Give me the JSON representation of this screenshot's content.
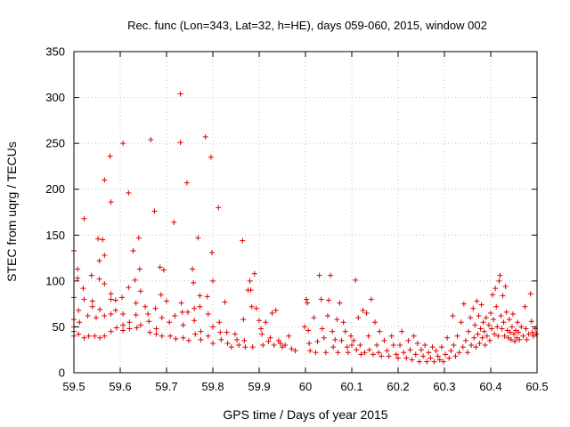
{
  "chart_data": {
    "type": "scatter",
    "title": "Rec. func (Lon=343, Lat=32, h=HE), days 059-060, 2015, window 002",
    "xlabel": "GPS time / Days of year 2015",
    "ylabel": "STEC from uqrg / TECUs",
    "xlim": [
      59.5,
      60.5
    ],
    "ylim": [
      0,
      350
    ],
    "xticks": [
      59.5,
      59.6,
      59.7,
      59.8,
      59.9,
      60.0,
      60.1,
      60.2,
      60.3,
      60.4,
      60.5
    ],
    "xtick_labels": [
      "59.5",
      "59.6",
      "59.7",
      "59.8",
      "59.9",
      "60",
      "60.1",
      "60.2",
      "60.3",
      "60.4",
      "60.5"
    ],
    "yticks": [
      0,
      50,
      100,
      150,
      200,
      250,
      300,
      350
    ],
    "ytick_labels": [
      "0",
      "50",
      "100",
      "150",
      "200",
      "250",
      "300",
      "350"
    ],
    "grid": true,
    "marker": "+",
    "color": "#dd0000",
    "series": [
      {
        "name": "STEC",
        "points": [
          [
            59.5,
            133
          ],
          [
            59.5,
            82
          ],
          [
            59.5,
            58
          ],
          [
            59.5,
            50
          ],
          [
            59.5,
            45
          ],
          [
            59.5,
            40
          ],
          [
            59.508,
            113
          ],
          [
            59.508,
            103
          ],
          [
            59.51,
            68
          ],
          [
            59.51,
            42
          ],
          [
            59.512,
            55
          ],
          [
            59.52,
            92
          ],
          [
            59.522,
            168
          ],
          [
            59.522,
            80
          ],
          [
            59.522,
            38
          ],
          [
            59.53,
            62
          ],
          [
            59.532,
            40
          ],
          [
            59.538,
            106
          ],
          [
            59.54,
            78
          ],
          [
            59.54,
            72
          ],
          [
            59.545,
            40
          ],
          [
            59.548,
            60
          ],
          [
            59.552,
            146
          ],
          [
            59.555,
            122
          ],
          [
            59.555,
            102
          ],
          [
            59.556,
            69
          ],
          [
            59.556,
            38
          ],
          [
            59.562,
            145
          ],
          [
            59.566,
            210
          ],
          [
            59.566,
            128
          ],
          [
            59.566,
            97
          ],
          [
            59.566,
            62
          ],
          [
            59.566,
            40
          ],
          [
            59.578,
            236
          ],
          [
            59.58,
            186
          ],
          [
            59.58,
            86
          ],
          [
            59.58,
            80
          ],
          [
            59.58,
            64
          ],
          [
            59.58,
            45
          ],
          [
            59.59,
            68
          ],
          [
            59.59,
            79
          ],
          [
            59.592,
            49
          ],
          [
            59.604,
            82
          ],
          [
            59.606,
            250
          ],
          [
            59.606,
            64
          ],
          [
            59.606,
            52
          ],
          [
            59.606,
            46
          ],
          [
            59.618,
            196
          ],
          [
            59.618,
            93
          ],
          [
            59.62,
            55
          ],
          [
            59.62,
            48
          ],
          [
            59.628,
            133
          ],
          [
            59.632,
            101
          ],
          [
            59.634,
            76
          ],
          [
            59.634,
            63
          ],
          [
            59.636,
            49
          ],
          [
            59.64,
            147
          ],
          [
            59.642,
            113
          ],
          [
            59.644,
            89
          ],
          [
            59.644,
            52
          ],
          [
            59.654,
            72
          ],
          [
            59.66,
            64
          ],
          [
            59.662,
            56
          ],
          [
            59.664,
            44
          ],
          [
            59.666,
            254
          ],
          [
            59.674,
            176
          ],
          [
            59.676,
            70
          ],
          [
            59.678,
            48
          ],
          [
            59.678,
            42
          ],
          [
            59.686,
            115
          ],
          [
            59.688,
            85
          ],
          [
            59.69,
            60
          ],
          [
            59.69,
            40
          ],
          [
            59.694,
            112
          ],
          [
            59.7,
            78
          ],
          [
            59.706,
            55
          ],
          [
            59.708,
            40
          ],
          [
            59.716,
            164
          ],
          [
            59.718,
            62
          ],
          [
            59.72,
            37
          ],
          [
            59.73,
            304
          ],
          [
            59.73,
            251
          ],
          [
            59.732,
            76
          ],
          [
            59.734,
            66
          ],
          [
            59.736,
            52
          ],
          [
            59.736,
            38
          ],
          [
            59.744,
            207
          ],
          [
            59.746,
            66
          ],
          [
            59.748,
            35
          ],
          [
            59.756,
            113
          ],
          [
            59.758,
            98
          ],
          [
            59.76,
            70
          ],
          [
            59.76,
            57
          ],
          [
            59.762,
            42
          ],
          [
            59.768,
            147
          ],
          [
            59.772,
            84
          ],
          [
            59.772,
            72
          ],
          [
            59.774,
            45
          ],
          [
            59.774,
            36
          ],
          [
            59.784,
            257
          ],
          [
            59.788,
            83
          ],
          [
            59.79,
            64
          ],
          [
            59.79,
            40
          ],
          [
            59.796,
            235
          ],
          [
            59.798,
            131
          ],
          [
            59.8,
            100
          ],
          [
            59.8,
            50
          ],
          [
            59.8,
            32
          ],
          [
            59.812,
            180
          ],
          [
            59.814,
            55
          ],
          [
            59.816,
            44
          ],
          [
            59.818,
            36
          ],
          [
            59.826,
            77
          ],
          [
            59.83,
            44
          ],
          [
            59.832,
            32
          ],
          [
            59.84,
            28
          ],
          [
            59.848,
            42
          ],
          [
            59.852,
            36
          ],
          [
            59.856,
            30
          ],
          [
            59.864,
            144
          ],
          [
            59.866,
            58
          ],
          [
            59.868,
            35
          ],
          [
            59.87,
            28
          ],
          [
            59.876,
            90
          ],
          [
            59.88,
            100
          ],
          [
            59.882,
            90
          ],
          [
            59.884,
            72
          ],
          [
            59.886,
            28
          ],
          [
            59.89,
            108
          ],
          [
            59.894,
            70
          ],
          [
            59.9,
            57
          ],
          [
            59.904,
            48
          ],
          [
            59.906,
            42
          ],
          [
            59.908,
            30
          ],
          [
            59.914,
            55
          ],
          [
            59.92,
            34
          ],
          [
            59.924,
            38
          ],
          [
            59.928,
            65
          ],
          [
            59.932,
            30
          ],
          [
            59.936,
            68
          ],
          [
            59.942,
            35
          ],
          [
            59.946,
            32
          ],
          [
            59.95,
            28
          ],
          [
            59.956,
            30
          ],
          [
            59.964,
            40
          ],
          [
            59.97,
            26
          ],
          [
            59.978,
            24
          ],
          [
            59.998,
            50
          ],
          [
            60.002,
            80
          ],
          [
            60.004,
            76
          ],
          [
            60.006,
            46
          ],
          [
            60.008,
            32
          ],
          [
            60.01,
            24
          ],
          [
            60.018,
            60
          ],
          [
            60.022,
            22
          ],
          [
            60.026,
            34
          ],
          [
            60.03,
            106
          ],
          [
            60.034,
            80
          ],
          [
            60.036,
            48
          ],
          [
            60.04,
            38
          ],
          [
            60.044,
            22
          ],
          [
            60.048,
            62
          ],
          [
            60.05,
            79
          ],
          [
            60.054,
            106
          ],
          [
            60.058,
            45
          ],
          [
            60.06,
            28
          ],
          [
            60.064,
            36
          ],
          [
            60.068,
            58
          ],
          [
            60.07,
            22
          ],
          [
            60.074,
            76
          ],
          [
            60.078,
            35
          ],
          [
            60.082,
            55
          ],
          [
            60.086,
            45
          ],
          [
            60.09,
            28
          ],
          [
            60.092,
            22
          ],
          [
            60.098,
            40
          ],
          [
            60.1,
            30
          ],
          [
            60.104,
            35
          ],
          [
            60.108,
            101
          ],
          [
            60.11,
            25
          ],
          [
            60.114,
            60
          ],
          [
            60.118,
            30
          ],
          [
            60.12,
            20
          ],
          [
            60.124,
            68
          ],
          [
            60.128,
            22
          ],
          [
            60.132,
            65
          ],
          [
            60.136,
            40
          ],
          [
            60.138,
            25
          ],
          [
            60.142,
            80
          ],
          [
            60.146,
            20
          ],
          [
            60.15,
            55
          ],
          [
            60.154,
            30
          ],
          [
            60.158,
            22
          ],
          [
            60.16,
            45
          ],
          [
            60.164,
            18
          ],
          [
            60.17,
            35
          ],
          [
            60.176,
            24
          ],
          [
            60.18,
            18
          ],
          [
            60.186,
            40
          ],
          [
            60.19,
            30
          ],
          [
            60.196,
            20
          ],
          [
            60.2,
            16
          ],
          [
            60.204,
            30
          ],
          [
            60.208,
            45
          ],
          [
            60.212,
            22
          ],
          [
            60.218,
            16
          ],
          [
            60.222,
            35
          ],
          [
            60.226,
            25
          ],
          [
            60.23,
            14
          ],
          [
            60.234,
            40
          ],
          [
            60.238,
            20
          ],
          [
            60.242,
            32
          ],
          [
            60.246,
            12
          ],
          [
            60.25,
            25
          ],
          [
            60.254,
            18
          ],
          [
            60.258,
            30
          ],
          [
            60.262,
            12
          ],
          [
            60.266,
            22
          ],
          [
            60.27,
            16
          ],
          [
            60.274,
            28
          ],
          [
            60.278,
            12
          ],
          [
            60.282,
            24
          ],
          [
            60.286,
            18
          ],
          [
            60.29,
            14
          ],
          [
            60.294,
            28
          ],
          [
            60.298,
            12
          ],
          [
            60.302,
            20
          ],
          [
            60.306,
            38
          ],
          [
            60.31,
            16
          ],
          [
            60.314,
            24
          ],
          [
            60.318,
            62
          ],
          [
            60.32,
            30
          ],
          [
            60.324,
            18
          ],
          [
            60.328,
            40
          ],
          [
            60.332,
            22
          ],
          [
            60.336,
            55
          ],
          [
            60.34,
            28
          ],
          [
            60.342,
            75
          ],
          [
            60.346,
            35
          ],
          [
            60.35,
            22
          ],
          [
            60.352,
            45
          ],
          [
            60.356,
            60
          ],
          [
            60.358,
            30
          ],
          [
            60.362,
            70
          ],
          [
            60.364,
            38
          ],
          [
            60.366,
            52
          ],
          [
            60.368,
            28
          ],
          [
            60.37,
            78
          ],
          [
            60.372,
            42
          ],
          [
            60.374,
            62
          ],
          [
            60.376,
            32
          ],
          [
            60.378,
            48
          ],
          [
            60.38,
            74
          ],
          [
            60.382,
            38
          ],
          [
            60.384,
            55
          ],
          [
            60.386,
            45
          ],
          [
            60.388,
            30
          ],
          [
            60.39,
            60
          ],
          [
            60.392,
            40
          ],
          [
            60.396,
            52
          ],
          [
            60.398,
            35
          ],
          [
            60.4,
            65
          ],
          [
            60.402,
            48
          ],
          [
            60.404,
            85
          ],
          [
            60.406,
            58
          ],
          [
            60.408,
            42
          ],
          [
            60.41,
            92
          ],
          [
            60.412,
            72
          ],
          [
            60.414,
            50
          ],
          [
            60.416,
            40
          ],
          [
            60.418,
            100
          ],
          [
            60.42,
            106
          ],
          [
            60.422,
            62
          ],
          [
            60.424,
            48
          ],
          [
            60.426,
            84
          ],
          [
            60.428,
            55
          ],
          [
            60.43,
            40
          ],
          [
            60.432,
            94
          ],
          [
            60.434,
            66
          ],
          [
            60.436,
            46
          ],
          [
            60.438,
            38
          ],
          [
            60.44,
            58
          ],
          [
            60.442,
            44
          ],
          [
            60.444,
            36
          ],
          [
            60.446,
            50
          ],
          [
            60.448,
            64
          ],
          [
            60.45,
            42
          ],
          [
            60.452,
            34
          ],
          [
            60.454,
            46
          ],
          [
            60.456,
            38
          ],
          [
            60.458,
            55
          ],
          [
            60.46,
            44
          ],
          [
            60.462,
            36
          ],
          [
            60.466,
            50
          ],
          [
            60.47,
            40
          ],
          [
            60.474,
            72
          ],
          [
            60.476,
            48
          ],
          [
            60.478,
            36
          ],
          [
            60.482,
            42
          ],
          [
            60.486,
            86
          ],
          [
            60.488,
            56
          ],
          [
            60.49,
            44
          ],
          [
            60.492,
            40
          ],
          [
            60.496,
            48
          ],
          [
            60.498,
            42
          ]
        ]
      }
    ]
  }
}
